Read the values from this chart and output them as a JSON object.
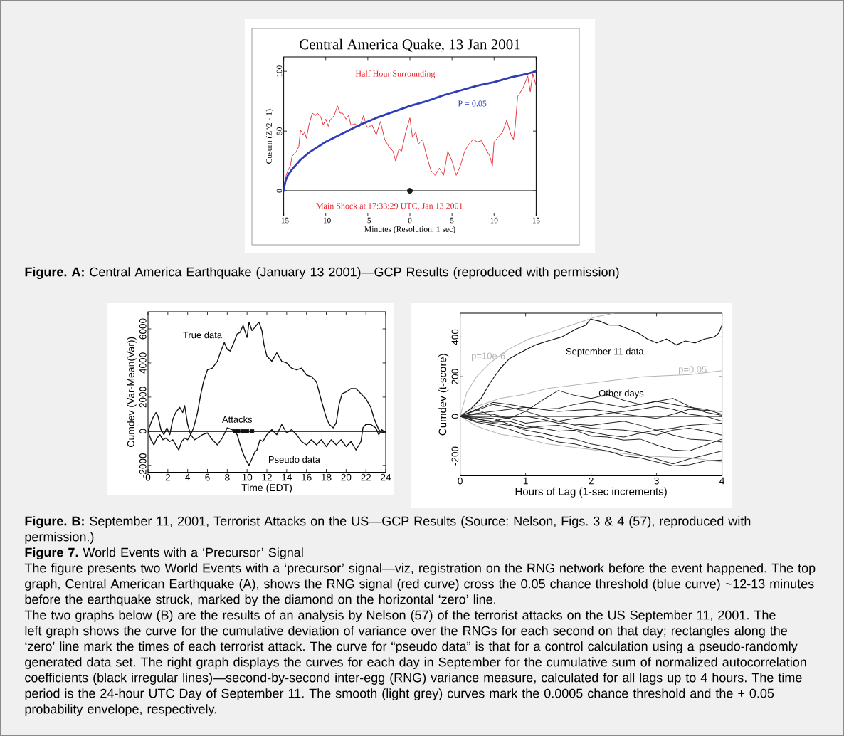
{
  "chart_data": [
    {
      "type": "line",
      "title": "Central America Quake, 13 Jan 2001",
      "xlabel": "Minutes (Resolution, 1 sec)",
      "ylabel": "Cusum (Z^2 - 1)",
      "xlim": [
        -15,
        15
      ],
      "ylim": [
        -21,
        112
      ],
      "xticks": [
        -15,
        -10,
        -5,
        0,
        5,
        10,
        15
      ],
      "yticks": [
        0,
        50,
        100
      ],
      "series": [
        {
          "color": "#e8242c",
          "x": [
            -15,
            -14.7,
            -14.5,
            -14.2,
            -14,
            -13.7,
            -13.5,
            -13.2,
            -13,
            -12.7,
            -12.5,
            -12.3,
            -12,
            -11.6,
            -11.2,
            -11,
            -10.6,
            -10.3,
            -10,
            -9.7,
            -9.5,
            -9,
            -8.6,
            -8.3,
            -8,
            -7.6,
            -7.3,
            -7,
            -6.5,
            -6,
            -5.5,
            -5.2,
            -5,
            -4.5,
            -4,
            -3.5,
            -3,
            -2.5,
            -2,
            -1.7,
            -1.3,
            -1,
            -0.5,
            0,
            0.3,
            0.7,
            1,
            1.5,
            2,
            2.5,
            3,
            3.5,
            4,
            4.5,
            5,
            5.5,
            6,
            6.5,
            7,
            7.5,
            8,
            8.5,
            9,
            9.5,
            9.8,
            10,
            10.5,
            11,
            11.5,
            12,
            12.3,
            12.5,
            12.8,
            13,
            13.5,
            14,
            14.3,
            14.6,
            15
          ],
          "values": [
            0,
            13,
            17,
            21,
            29,
            31,
            33,
            37,
            51,
            47,
            49,
            44,
            55,
            65,
            63,
            65,
            62,
            55,
            60,
            54,
            59,
            63,
            71,
            65,
            65,
            60,
            63,
            55,
            56,
            53,
            63,
            55,
            53,
            55,
            47,
            58,
            43,
            37,
            33,
            25,
            35,
            33,
            49,
            61,
            45,
            49,
            39,
            43,
            29,
            17,
            13,
            19,
            13,
            33,
            25,
            13,
            21,
            33,
            39,
            43,
            41,
            42,
            35,
            29,
            21,
            41,
            45,
            49,
            59,
            47,
            43,
            53,
            79,
            81,
            87,
            96,
            83,
            98,
            88
          ]
        },
        {
          "color": "#2f3db7",
          "x": [
            -15,
            -14.8,
            -14.5,
            -14,
            -13,
            -12,
            -10,
            -8,
            -6,
            -4,
            -2,
            0,
            2,
            4,
            6,
            8,
            10,
            12,
            14,
            15
          ],
          "values": [
            0,
            8,
            13,
            18,
            26,
            32,
            41,
            48,
            55,
            61,
            66,
            71,
            75,
            80,
            84,
            88,
            91,
            95,
            98,
            100
          ]
        },
        {
          "type": "scatter",
          "marker": "circle",
          "color": "#1a1a1a",
          "x": [
            0
          ],
          "values": [
            0
          ]
        }
      ],
      "ref_lines": [
        {
          "axis": "y",
          "value": 0,
          "color": "#000000"
        }
      ],
      "annotations": [
        "Half Hour Surrounding",
        "P = 0.05",
        "Main Shock at 17:33:29 UTC, Jan 13 2001",
        "**Figure. A:** Central America Earthquake (January 13 2001)—GCP Results (reproduced with permission)"
      ]
    },
    {
      "type": "line",
      "xlabel": "Time (EDT)",
      "ylabel": "Cumdev (Var-Mean(Var))",
      "xlim": [
        0,
        24
      ],
      "ylim": [
        -2400,
        7000
      ],
      "xticks": [
        0,
        2,
        4,
        6,
        8,
        10,
        12,
        14,
        16,
        18,
        20,
        22,
        24
      ],
      "yticks": [
        -2000,
        0,
        2000,
        4000,
        6000
      ],
      "series": [
        {
          "color": "#111111",
          "x": [
            0,
            0.3,
            0.5,
            0.8,
            1,
            1.3,
            1.6,
            1.9,
            2.2,
            2.5,
            2.8,
            3.2,
            3.5,
            3.7,
            4,
            4.3,
            4.6,
            5,
            5.3,
            5.6,
            6,
            6.5,
            7,
            7.3,
            7.7,
            8,
            8.3,
            8.6,
            9,
            9.3,
            9.6,
            10,
            10.2,
            10.5,
            10.8,
            11.2,
            11.5,
            11.7,
            12,
            12.5,
            13,
            13.5,
            14,
            14.5,
            15,
            15.5,
            16,
            16.5,
            17,
            17.5,
            18,
            18.3,
            18.7,
            19,
            19.3,
            19.6,
            20,
            20.5,
            21,
            21.5,
            22,
            22.5,
            22.8,
            23,
            23.3,
            23.6,
            24
          ],
          "values": [
            0,
            500,
            800,
            1100,
            900,
            100,
            -200,
            200,
            -200,
            700,
            1100,
            1400,
            1100,
            1500,
            400,
            -200,
            200,
            1100,
            2100,
            2900,
            3600,
            3700,
            4100,
            4600,
            5200,
            4800,
            4700,
            5100,
            5700,
            5800,
            6200,
            5500,
            6400,
            5900,
            6100,
            6400,
            5900,
            5100,
            4400,
            4100,
            4600,
            4100,
            4000,
            3700,
            3600,
            3700,
            3300,
            3200,
            2900,
            1800,
            800,
            400,
            200,
            500,
            1600,
            2200,
            2300,
            2500,
            2500,
            2200,
            1900,
            1400,
            800,
            500,
            100,
            -100,
            0
          ]
        },
        {
          "color": "#111111",
          "x": [
            0,
            0.3,
            0.6,
            0.9,
            1.2,
            1.5,
            1.8,
            2.2,
            2.5,
            2.8,
            3.1,
            3.4,
            3.7,
            4,
            4.3,
            4.7,
            5,
            5.5,
            6,
            6.5,
            7,
            7.5,
            8,
            8.5,
            9,
            9.3,
            9.6,
            9.9,
            10.2,
            10.5,
            10.8,
            11,
            11.3,
            11.6,
            12,
            12.5,
            13,
            13.5,
            14,
            14.5,
            15,
            15.5,
            16,
            16.5,
            17,
            17.5,
            18,
            18.5,
            19,
            19.5,
            20,
            20.5,
            21,
            21.5,
            21.7,
            22,
            22.5,
            23,
            23.3,
            23.6,
            24
          ],
          "values": [
            0,
            -500,
            -800,
            -400,
            -200,
            -500,
            -400,
            -600,
            -500,
            -800,
            -1100,
            -600,
            -400,
            -500,
            -200,
            -500,
            -400,
            -200,
            -100,
            -500,
            -800,
            -400,
            200,
            100,
            -200,
            -800,
            -1300,
            -1700,
            -2000,
            -1600,
            -1200,
            -1100,
            -500,
            -600,
            -200,
            100,
            -200,
            400,
            -100,
            100,
            -200,
            -600,
            -800,
            -500,
            -800,
            -500,
            -900,
            -500,
            -800,
            -500,
            -900,
            -600,
            -1100,
            -600,
            200,
            400,
            400,
            200,
            -200,
            100,
            -100
          ]
        },
        {
          "type": "scatter",
          "marker": "square",
          "color": "#111111",
          "x": [
            8.8,
            9.1,
            9.6,
            10,
            10.5
          ],
          "values": [
            0,
            0,
            0,
            0,
            0
          ]
        }
      ],
      "ref_lines": [
        {
          "axis": "y",
          "value": 0,
          "color": "#000000"
        }
      ],
      "annotations": [
        "True data",
        "Attacks",
        "Pseudo data",
        "**Figure. B:** September 11, 2001, Terrorist Attacks on the US—GCP Results (Source: Nelson, Figs. 3 & 4 (57), reproduced with permission.)"
      ]
    },
    {
      "type": "line",
      "xlabel": "Hours of Lag (1-sec increments)",
      "ylabel": "Cumdev (t-score)",
      "xlim": [
        0,
        4
      ],
      "ylim": [
        -300,
        520
      ],
      "xticks": [
        0,
        1,
        2,
        3,
        4
      ],
      "yticks": [
        -200,
        0,
        200,
        400
      ],
      "series": [
        {
          "color": "#111111",
          "x": [
            0,
            0.17,
            0.32,
            0.46,
            0.61,
            0.75,
            0.97,
            1.15,
            1.34,
            1.55,
            1.77,
            1.92,
            1.99,
            2.13,
            2.28,
            2.42,
            2.57,
            2.72,
            2.86,
            3,
            3.15,
            3.3,
            3.44,
            3.59,
            3.73,
            3.88,
            3.95,
            4
          ],
          "values": [
            0,
            40,
            90,
            170,
            240,
            290,
            330,
            360,
            380,
            400,
            440,
            460,
            490,
            480,
            460,
            460,
            440,
            420,
            390,
            370,
            390,
            360,
            380,
            370,
            390,
            400,
            420,
            460
          ]
        },
        {
          "color": "#b4b4b4",
          "x": [
            0,
            0.1,
            0.25,
            0.46,
            0.75,
            1.05,
            1.34,
            1.7,
            2.06,
            2.35
          ],
          "values": [
            0,
            120,
            200,
            270,
            340,
            390,
            420,
            460,
            500,
            520
          ]
        },
        {
          "color": "#b4b4b4",
          "x": [
            0,
            0.25,
            0.61,
            0.97,
            1.34,
            2.06,
            2.79,
            3.51,
            4
          ],
          "values": [
            0,
            50,
            90,
            110,
            140,
            170,
            200,
            210,
            230
          ]
        },
        {
          "color": "#b4b4b4",
          "x": [
            0,
            0.25,
            0.61,
            0.97,
            1.34,
            2.06,
            2.79,
            3.51,
            4
          ],
          "values": [
            0,
            -50,
            -90,
            -110,
            -140,
            -170,
            -200,
            -210,
            -230
          ]
        },
        {
          "color": "#222222",
          "x": [
            0,
            0.25,
            0.5,
            0.75,
            1,
            1.25,
            1.5,
            1.75,
            2,
            2.25,
            2.5,
            2.75,
            3,
            3.25,
            3.5,
            3.75,
            4
          ],
          "values": [
            0,
            30,
            60,
            45,
            25,
            80,
            130,
            105,
            90,
            110,
            80,
            60,
            75,
            90,
            50,
            20,
            5
          ]
        },
        {
          "color": "#222222",
          "x": [
            0,
            0.25,
            0.5,
            0.75,
            1,
            1.25,
            1.5,
            1.75,
            2,
            2.25,
            2.5,
            2.75,
            3,
            3.25,
            3.5,
            3.75,
            4
          ],
          "values": [
            0,
            35,
            70,
            60,
            45,
            35,
            40,
            60,
            75,
            60,
            45,
            60,
            75,
            60,
            45,
            35,
            10
          ]
        },
        {
          "color": "#222222",
          "x": [
            0,
            0.25,
            0.5,
            0.75,
            1,
            1.25,
            1.5,
            1.75,
            2,
            2.25,
            2.5,
            2.75,
            3,
            3.25,
            3.5,
            3.75,
            4
          ],
          "values": [
            0,
            35,
            0,
            -10,
            25,
            0,
            -25,
            -10,
            0,
            15,
            25,
            35,
            50,
            35,
            10,
            0,
            -25
          ]
        },
        {
          "color": "#222222",
          "x": [
            0,
            0.25,
            0.5,
            0.75,
            1,
            1.25,
            1.5,
            1.75,
            2,
            2.25,
            2.5,
            2.75,
            3,
            3.25,
            3.5,
            3.75,
            4
          ],
          "values": [
            0,
            -10,
            -30,
            -25,
            -50,
            -60,
            -75,
            -70,
            -100,
            -105,
            -120,
            -115,
            -145,
            -170,
            -175,
            -145,
            -115
          ]
        },
        {
          "color": "#222222",
          "x": [
            0,
            0.25,
            0.5,
            0.75,
            1,
            1.25,
            1.5,
            1.75,
            2,
            2.25,
            2.5,
            2.75,
            3,
            3.25,
            3.5,
            3.75,
            4
          ],
          "values": [
            0,
            -30,
            -45,
            -65,
            -95,
            -105,
            -130,
            -140,
            -160,
            -175,
            -200,
            -210,
            -230,
            -250,
            -245,
            -225,
            -220
          ]
        },
        {
          "color": "#222222",
          "x": [
            0,
            0.25,
            0.5,
            0.75,
            1,
            1.25,
            1.5,
            1.75,
            2,
            2.25,
            2.5,
            2.75,
            3,
            3.25,
            3.5,
            3.75,
            4
          ],
          "values": [
            0,
            -5,
            -10,
            -40,
            -70,
            -85,
            -105,
            -115,
            -140,
            -155,
            -175,
            -195,
            -215,
            -240,
            -215,
            -195,
            -175
          ]
        },
        {
          "color": "#222222",
          "x": [
            0,
            0.25,
            0.5,
            0.75,
            1,
            1.25,
            1.5,
            1.75,
            2,
            2.25,
            2.5,
            2.75,
            3,
            3.25,
            3.5,
            3.75,
            4
          ],
          "values": [
            0,
            10,
            10,
            -10,
            -35,
            -25,
            -25,
            -45,
            -60,
            -65,
            -70,
            -80,
            -95,
            -70,
            -60,
            -75,
            -95
          ]
        },
        {
          "color": "#222222",
          "x": [
            0,
            0.25,
            0.5,
            0.75,
            1,
            1.25,
            1.5,
            1.75,
            2,
            2.25,
            2.5,
            2.75,
            3,
            3.25,
            3.5,
            3.75,
            4
          ],
          "values": [
            0,
            -15,
            -25,
            -5,
            0,
            -15,
            -35,
            -40,
            -45,
            -35,
            -25,
            -45,
            -70,
            -95,
            -115,
            -120,
            -130
          ]
        },
        {
          "color": "#222222",
          "x": [
            0,
            0.25,
            0.5,
            0.75,
            1,
            1.25,
            1.5,
            1.75,
            2,
            2.25,
            2.5,
            2.75,
            3,
            3.25,
            3.5,
            3.75,
            4
          ],
          "values": [
            0,
            15,
            25,
            35,
            45,
            35,
            25,
            30,
            35,
            25,
            10,
            0,
            -10,
            10,
            35,
            30,
            25
          ]
        },
        {
          "color": "#222222",
          "x": [
            0,
            0.25,
            0.5,
            0.75,
            1,
            1.25,
            1.5,
            1.75,
            2,
            2.25,
            2.5,
            2.75,
            3,
            3.25,
            3.5,
            3.75,
            4
          ],
          "values": [
            0,
            -25,
            -35,
            -45,
            -60,
            -50,
            -45,
            -65,
            -80,
            -95,
            -105,
            -85,
            -70,
            -60,
            -45,
            -40,
            -35
          ]
        }
      ],
      "ref_lines": [
        {
          "axis": "y",
          "value": 0,
          "color": "#000000"
        }
      ],
      "annotations": [
        {
          "text": "p=10e-6",
          "x": 0.43,
          "y": 300
        },
        "September 11 data",
        {
          "text": "p=0.05",
          "x": 3.55,
          "y": 232
        },
        {
          "text": "Other days",
          "x": 2.46,
          "y": 112
        },
        "**Figure 7.** World Events with a ‘Precursor’ Signal",
        "The figure presents two World Events with a ‘precursor’ signal—viz, registration on the RNG network before the event happened. The top graph, Central American Earthquake (A), shows the RNG signal (red curve) cross the 0.05 chance threshold (blue curve) ~12-13 minutes before the earthquake struck, marked by the diamond on the horizontal ‘zero’ line.",
        "The two graphs below (B) are the results of an analysis by Nelson (57) of the terrorist attacks on the US September 11, 2001. The left graph shows the curve for the cumulative deviation of variance over the RNGs for each second on that day; rectangles along the ‘zero’ line mark the times of each terrorist attack. The curve for “pseudo data” is that for a control calculation using a pseudo-randomly generated data set. The right graph displays the curves for each day in September for the cumulative sum of normalized autocorrelation coefficients (black irregular lines)—second-by-second inter-egg (RNG) variance measure, calculated for all lags up to 4 hours. The time period is the 24-hour UTC Day of September 11. The smooth (light grey) curves mark the 0.0005 chance threshold and the + 0.05 probability envelope, respectively."
      ]
    }
  ]
}
